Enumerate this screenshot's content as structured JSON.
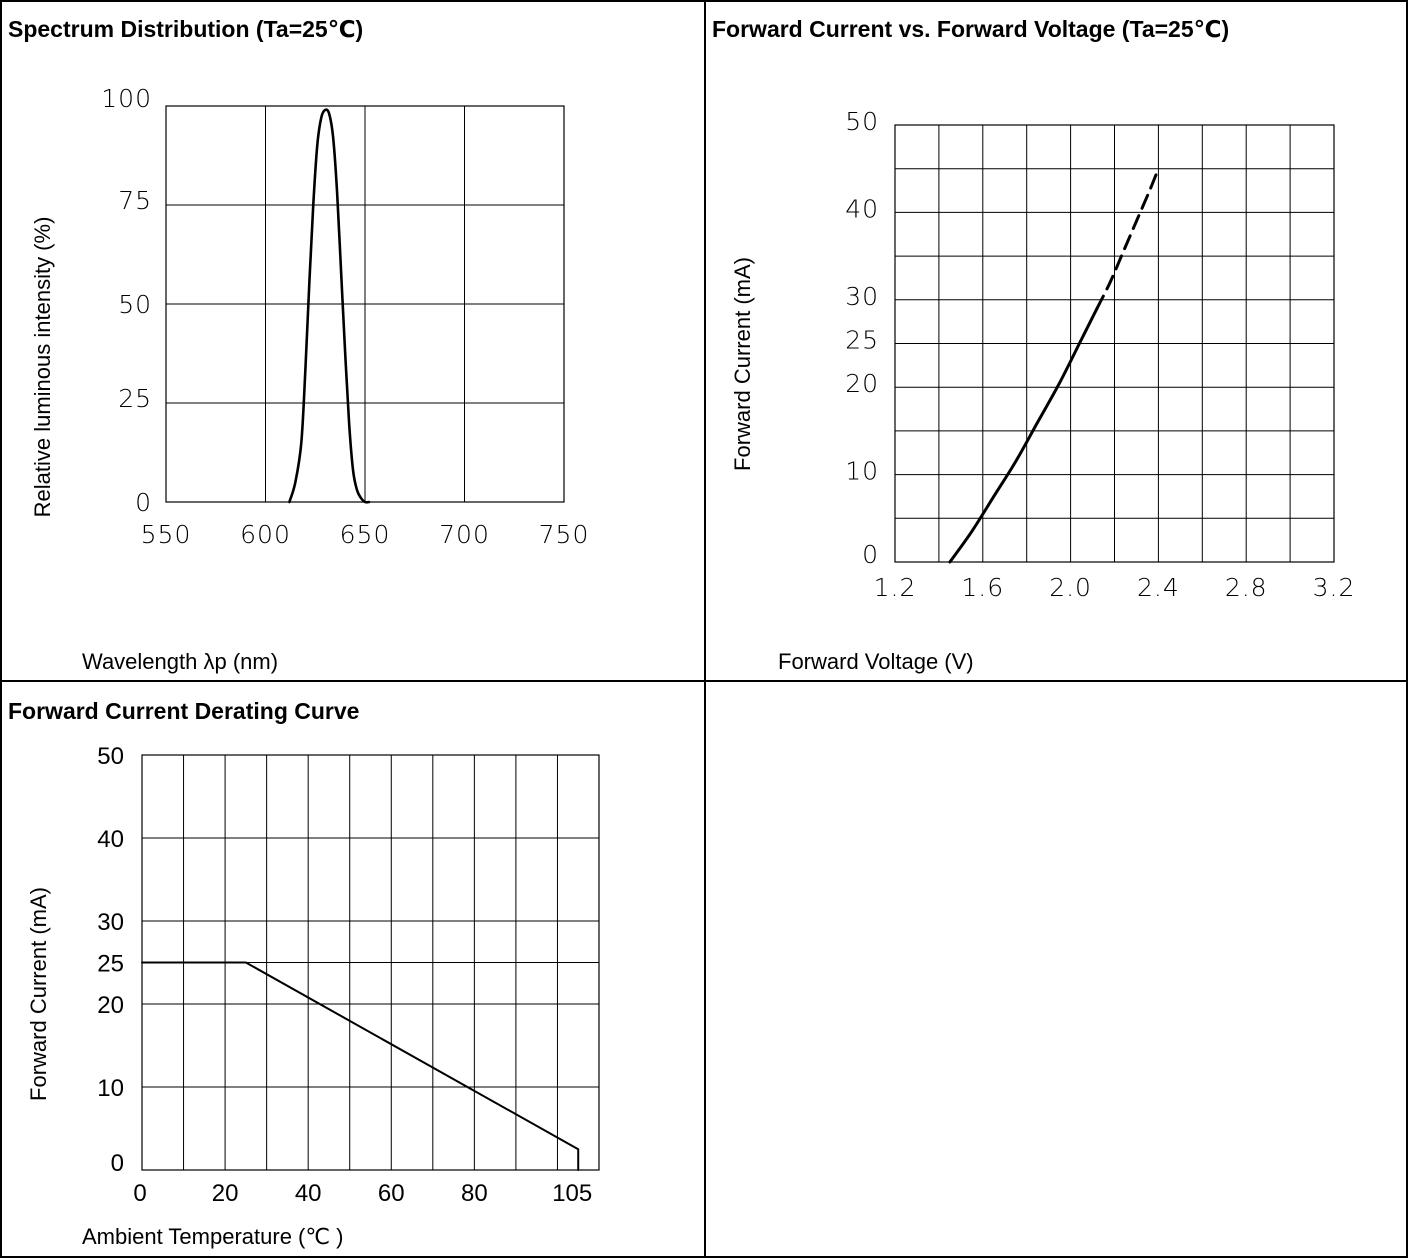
{
  "panels": {
    "spectrum": {
      "title": "Spectrum Distribution (Ta=25℃)"
    },
    "iv": {
      "title": "Forward Current vs. Forward Voltage (Ta=25℃)"
    },
    "derating": {
      "title": "Forward Current Derating Curve"
    }
  },
  "chart_data": [
    {
      "type": "line",
      "title": "Spectrum Distribution (Ta=25℃)",
      "xlabel": "Wavelength λp (nm)",
      "ylabel": "Relative luminous intensity (%)",
      "xlim": [
        550,
        750
      ],
      "ylim": [
        0,
        100
      ],
      "x_ticks": [
        "550",
        "600",
        "650",
        "700",
        "750"
      ],
      "y_ticks": [
        "0",
        "25",
        "50",
        "75",
        "100"
      ],
      "grid": true,
      "series": [
        {
          "x": [
            612,
            615,
            618,
            620,
            622,
            624,
            626,
            628,
            630,
            632,
            634,
            636,
            638,
            640,
            642,
            644,
            646,
            648,
            650,
            652
          ],
          "y": [
            0,
            5,
            15,
            33,
            55,
            75,
            90,
            97,
            99,
            98,
            92,
            78,
            58,
            38,
            20,
            8,
            3,
            1,
            0,
            0
          ]
        }
      ]
    },
    {
      "type": "line",
      "title": "Forward Current vs. Forward Voltage (Ta=25℃)",
      "xlabel": "Forward Voltage (V)",
      "ylabel": "Forward Current (mA)",
      "xlim": [
        1.2,
        3.2
      ],
      "ylim": [
        0,
        50
      ],
      "x_ticks": [
        "1.2",
        "1.6",
        "2.0",
        "2.4",
        "2.8",
        "3.2"
      ],
      "y_ticks": [
        "0",
        "10",
        "20",
        "25",
        "30",
        "40",
        "50"
      ],
      "grid": true,
      "series": [
        {
          "style": "solid",
          "x": [
            1.45,
            1.55,
            1.65,
            1.75,
            1.85,
            1.95,
            2.05,
            2.12
          ],
          "y": [
            0,
            3.5,
            7.5,
            11.5,
            16,
            20.5,
            25.5,
            29
          ]
        },
        {
          "style": "dashed",
          "x": [
            2.12,
            2.18,
            2.24,
            2.3,
            2.36,
            2.4
          ],
          "y": [
            29,
            32,
            35.5,
            39,
            42.5,
            45
          ]
        }
      ]
    },
    {
      "type": "line",
      "title": "Forward Current Derating Curve",
      "xlabel": "Ambient Temperature (℃ )",
      "ylabel": "Forward Current (mA)",
      "xlim": [
        0,
        110
      ],
      "ylim": [
        0,
        50
      ],
      "x_ticks": [
        "0",
        "20",
        "40",
        "60",
        "80",
        "105"
      ],
      "y_ticks": [
        "0",
        "10",
        "20",
        "25",
        "30",
        "40",
        "50"
      ],
      "grid": true,
      "series": [
        {
          "x": [
            0,
            25,
            105,
            105
          ],
          "y": [
            25,
            25,
            2.5,
            0
          ]
        }
      ]
    }
  ]
}
